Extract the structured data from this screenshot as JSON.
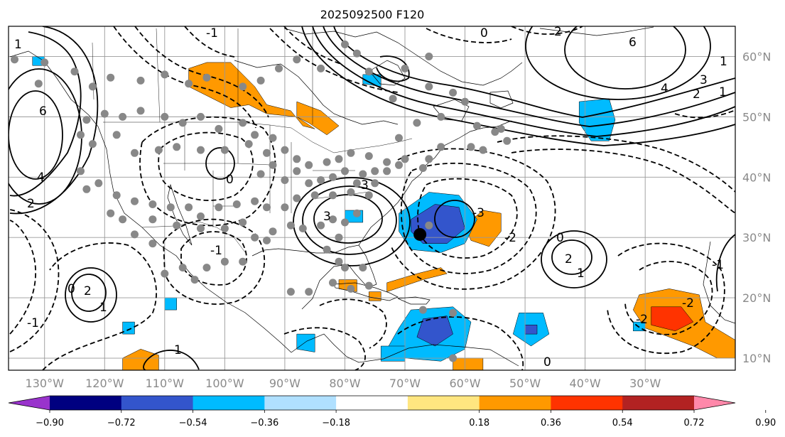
{
  "title": "2025092500 F120",
  "map": {
    "lon_range": [
      -136,
      -15
    ],
    "lat_range": [
      8,
      65
    ],
    "lat_ticks": [
      {
        "value": 60,
        "label": "60°N"
      },
      {
        "value": 50,
        "label": "50°N"
      },
      {
        "value": 40,
        "label": "40°N"
      },
      {
        "value": 30,
        "label": "30°N"
      },
      {
        "value": 20,
        "label": "20°N"
      },
      {
        "value": 10,
        "label": "10°N"
      }
    ],
    "lon_ticks": [
      {
        "value": -130,
        "label": "130°W"
      },
      {
        "value": -120,
        "label": "120°W"
      },
      {
        "value": -110,
        "label": "110°W"
      },
      {
        "value": -100,
        "label": "100°W"
      },
      {
        "value": -90,
        "label": "90°W"
      },
      {
        "value": -80,
        "label": "80°W"
      },
      {
        "value": -70,
        "label": "70°W"
      },
      {
        "value": -60,
        "label": "60°W"
      },
      {
        "value": -50,
        "label": "50°W"
      },
      {
        "value": -40,
        "label": "40°W"
      },
      {
        "value": -30,
        "label": "30°W"
      }
    ],
    "grid": true
  },
  "colorbar": {
    "extend": "both",
    "under_color": "#9933cc",
    "over_color": "#ff88aa",
    "colors": [
      "#000080",
      "#3355cc",
      "#00bbff",
      "#b0e0ff",
      "#ffffff",
      "#ffe680",
      "#ff9900",
      "#ff3300",
      "#b22222"
    ],
    "ticks": [
      {
        "value": -0.9,
        "label": "−0.90"
      },
      {
        "value": -0.72,
        "label": "−0.72"
      },
      {
        "value": -0.54,
        "label": "−0.54"
      },
      {
        "value": -0.36,
        "label": "−0.36"
      },
      {
        "value": -0.18,
        "label": "−0.18"
      },
      {
        "value": 0.18,
        "label": "0.18"
      },
      {
        "value": 0.36,
        "label": "0.36"
      },
      {
        "value": 0.54,
        "label": "0.54"
      },
      {
        "value": 0.72,
        "label": "0.72"
      },
      {
        "value": 0.9,
        "label": "0.90"
      }
    ]
  },
  "contour_labels": [
    "6",
    "4",
    "2",
    "1",
    "3",
    "0",
    "-1",
    "-2",
    "-3",
    "6",
    "4",
    "3",
    "2",
    "1",
    "0",
    "2",
    "1",
    "-1",
    "0",
    "1",
    "2",
    "-2",
    "-1",
    "-2",
    "1",
    "0",
    "2",
    "1",
    "0",
    "-1",
    "3"
  ],
  "highlighted_point": {
    "lon": -67.5,
    "lat": 30.5,
    "color": "#000000"
  },
  "station_color": "#888888",
  "stations": [
    [
      -135,
      59.5
    ],
    [
      -130,
      59
    ],
    [
      -125,
      57.5
    ],
    [
      -131,
      55.5
    ],
    [
      -122,
      55
    ],
    [
      -119,
      56.5
    ],
    [
      -114,
      56
    ],
    [
      -110,
      57
    ],
    [
      -106,
      55.5
    ],
    [
      -103,
      56.5
    ],
    [
      -97,
      55
    ],
    [
      -94,
      56
    ],
    [
      -91,
      58
    ],
    [
      -88,
      59.5
    ],
    [
      -84,
      58
    ],
    [
      -80,
      62
    ],
    [
      -78,
      60.5
    ],
    [
      -76,
      57.5
    ],
    [
      -70,
      58
    ],
    [
      -66,
      60
    ],
    [
      -72,
      53
    ],
    [
      -66,
      55
    ],
    [
      -62,
      54
    ],
    [
      -60,
      52.5
    ],
    [
      -64,
      50
    ],
    [
      -68,
      49
    ],
    [
      -58,
      48.5
    ],
    [
      -55,
      47.5
    ],
    [
      -53,
      46
    ],
    [
      -57,
      44.5
    ],
    [
      -64,
      45
    ],
    [
      -66,
      43
    ],
    [
      -70,
      43
    ],
    [
      -73,
      42.5
    ],
    [
      -75,
      41
    ],
    [
      -76,
      43.5
    ],
    [
      -79,
      44
    ],
    [
      -81,
      43
    ],
    [
      -83,
      42.5
    ],
    [
      -86,
      42
    ],
    [
      -88,
      43
    ],
    [
      -90,
      44.5
    ],
    [
      -92,
      46.5
    ],
    [
      -95,
      47
    ],
    [
      -97,
      49
    ],
    [
      -101,
      48
    ],
    [
      -104,
      50
    ],
    [
      -107,
      49
    ],
    [
      -110,
      50
    ],
    [
      -114,
      51
    ],
    [
      -117,
      50
    ],
    [
      -120,
      50.5
    ],
    [
      -123,
      49.5
    ],
    [
      -124,
      47
    ],
    [
      -122,
      45.5
    ],
    [
      -118,
      47
    ],
    [
      -115,
      44
    ],
    [
      -111,
      44.5
    ],
    [
      -108,
      45
    ],
    [
      -104,
      44.5
    ],
    [
      -100,
      44.5
    ],
    [
      -96,
      45.5
    ],
    [
      -93,
      44
    ],
    [
      -92,
      42
    ],
    [
      -94,
      40.5
    ],
    [
      -90,
      39.5
    ],
    [
      -88,
      41
    ],
    [
      -86,
      39
    ],
    [
      -84,
      39.5
    ],
    [
      -82,
      40
    ],
    [
      -80,
      41
    ],
    [
      -78,
      39
    ],
    [
      -77,
      40.5
    ],
    [
      -75,
      39
    ],
    [
      -73,
      41
    ],
    [
      -71,
      42
    ],
    [
      -76,
      37
    ],
    [
      -79,
      37.5
    ],
    [
      -82,
      37
    ],
    [
      -85,
      37
    ],
    [
      -88,
      36.5
    ],
    [
      -90,
      35
    ],
    [
      -93,
      35
    ],
    [
      -95,
      36
    ],
    [
      -98,
      35.5
    ],
    [
      -101,
      35
    ],
    [
      -104,
      33.5
    ],
    [
      -106,
      35
    ],
    [
      -109,
      35
    ],
    [
      -112,
      35.5
    ],
    [
      -115,
      36
    ],
    [
      -118,
      37
    ],
    [
      -121,
      39
    ],
    [
      -124,
      41
    ],
    [
      -123,
      38
    ],
    [
      -119,
      34
    ],
    [
      -117,
      33
    ],
    [
      -112,
      33
    ],
    [
      -108,
      32
    ],
    [
      -104,
      31.5
    ],
    [
      -100,
      31.5
    ],
    [
      -97,
      32.5
    ],
    [
      -95,
      30
    ],
    [
      -92,
      31
    ],
    [
      -89,
      32
    ],
    [
      -87,
      31.5
    ],
    [
      -84,
      32
    ],
    [
      -82,
      33
    ],
    [
      -80,
      32.5
    ],
    [
      -78,
      34
    ],
    [
      -81,
      30
    ],
    [
      -83,
      28
    ],
    [
      -81,
      26
    ],
    [
      -80,
      25
    ],
    [
      -77,
      25
    ],
    [
      -76,
      22
    ],
    [
      -79,
      21.5
    ],
    [
      -82,
      22.5
    ],
    [
      -86,
      21
    ],
    [
      -89,
      21
    ],
    [
      -93,
      29.5
    ],
    [
      -97,
      26
    ],
    [
      -100,
      26
    ],
    [
      -103,
      25
    ],
    [
      -105,
      23
    ],
    [
      -107,
      25
    ],
    [
      -110,
      24
    ],
    [
      -112,
      29
    ],
    [
      -115,
      30.5
    ],
    [
      -67,
      18
    ],
    [
      -62,
      17.5
    ],
    [
      -66,
      32
    ],
    [
      -62,
      10
    ],
    [
      -54,
      48
    ],
    [
      -59,
      45
    ],
    [
      -71,
      46.5
    ],
    [
      -67,
      41.5
    ]
  ],
  "shaded_regions": [
    {
      "color": "#ff9900",
      "points": [
        [
          -106,
          58
        ],
        [
          -103,
          59
        ],
        [
          -99,
          59
        ],
        [
          -97,
          57
        ],
        [
          -95,
          55
        ],
        [
          -93,
          52
        ],
        [
          -89,
          51
        ],
        [
          -87,
          48.5
        ],
        [
          -85,
          48
        ],
        [
          -88,
          50
        ],
        [
          -93,
          50.5
        ],
        [
          -96,
          52
        ],
        [
          -99,
          51.5
        ],
        [
          -103,
          53.5
        ],
        [
          -106,
          55
        ]
      ]
    },
    {
      "color": "#ff9900",
      "points": [
        [
          -88,
          52.5
        ],
        [
          -84,
          51
        ],
        [
          -81,
          48.5
        ],
        [
          -83,
          47
        ],
        [
          -86,
          49
        ],
        [
          -88,
          50
        ]
      ]
    },
    {
      "color": "#ff9900",
      "points": [
        [
          -31,
          20.5
        ],
        [
          -26,
          21.5
        ],
        [
          -21,
          20.5
        ],
        [
          -20,
          16
        ],
        [
          -15,
          13
        ],
        [
          -15,
          10
        ],
        [
          -18,
          10
        ],
        [
          -22,
          12
        ],
        [
          -26,
          13.5
        ],
        [
          -30,
          15
        ],
        [
          -32,
          18
        ]
      ]
    },
    {
      "color": "#ff3300",
      "points": [
        [
          -29,
          18.5
        ],
        [
          -24,
          18.5
        ],
        [
          -22,
          16
        ],
        [
          -25,
          14.5
        ],
        [
          -29,
          15.5
        ]
      ]
    },
    {
      "color": "#ff9900",
      "points": [
        [
          -57,
          34.5
        ],
        [
          -54,
          34
        ],
        [
          -54,
          31
        ],
        [
          -56,
          28.5
        ],
        [
          -59,
          29.5
        ],
        [
          -60,
          32
        ]
      ]
    },
    {
      "color": "#ff9900",
      "points": [
        [
          -73,
          21
        ],
        [
          -67,
          23
        ],
        [
          -63,
          24
        ],
        [
          -64,
          25
        ],
        [
          -68,
          24
        ],
        [
          -73,
          22.5
        ]
      ]
    },
    {
      "color": "#ff9900",
      "points": [
        [
          -76,
          21
        ],
        [
          -74,
          21
        ],
        [
          -74,
          19.5
        ],
        [
          -76,
          19.5
        ]
      ]
    },
    {
      "color": "#ff9900",
      "points": [
        [
          -81,
          23
        ],
        [
          -78,
          23
        ],
        [
          -78,
          21
        ],
        [
          -81,
          21.5
        ]
      ]
    },
    {
      "color": "#ff9900",
      "points": [
        [
          -117,
          8
        ],
        [
          -111,
          8
        ],
        [
          -111,
          10.5
        ],
        [
          -114,
          11.5
        ],
        [
          -117,
          10
        ]
      ]
    },
    {
      "color": "#ff9900",
      "points": [
        [
          -62,
          10
        ],
        [
          -57,
          10
        ],
        [
          -57,
          8
        ],
        [
          -62,
          8
        ]
      ]
    },
    {
      "color": "#00bbff",
      "points": [
        [
          -71,
          34
        ],
        [
          -66,
          37.5
        ],
        [
          -61,
          37
        ],
        [
          -58,
          33
        ],
        [
          -60,
          29
        ],
        [
          -64,
          27.5
        ],
        [
          -69,
          28
        ],
        [
          -71,
          31
        ]
      ]
    },
    {
      "color": "#3355cc",
      "points": [
        [
          -69,
          33
        ],
        [
          -65,
          35.5
        ],
        [
          -61,
          35
        ],
        [
          -60,
          31.5
        ],
        [
          -63,
          29
        ],
        [
          -67,
          29
        ],
        [
          -69,
          31
        ]
      ]
    },
    {
      "color": "#00bbff",
      "points": [
        [
          -69,
          18
        ],
        [
          -62,
          18.5
        ],
        [
          -59,
          16
        ],
        [
          -60,
          11.5
        ],
        [
          -64,
          9.5
        ],
        [
          -70,
          10
        ],
        [
          -73,
          11.5
        ],
        [
          -71,
          15
        ]
      ]
    },
    {
      "color": "#3355cc",
      "points": [
        [
          -67,
          16.5
        ],
        [
          -63,
          17
        ],
        [
          -62,
          14
        ],
        [
          -65,
          12
        ],
        [
          -68,
          13.5
        ]
      ]
    },
    {
      "color": "#00bbff",
      "points": [
        [
          -41,
          52.5
        ],
        [
          -36,
          53
        ],
        [
          -35,
          49.5
        ],
        [
          -36,
          46
        ],
        [
          -39,
          46
        ],
        [
          -41,
          49
        ]
      ]
    },
    {
      "color": "#00bbff",
      "points": [
        [
          -51,
          17.5
        ],
        [
          -47,
          17.5
        ],
        [
          -46,
          14
        ],
        [
          -49,
          12
        ],
        [
          -52,
          14
        ]
      ]
    },
    {
      "color": "#3355cc",
      "points": [
        [
          -50,
          15.5
        ],
        [
          -48,
          15.5
        ],
        [
          -48,
          14
        ],
        [
          -50,
          14
        ]
      ]
    },
    {
      "color": "#00bbff",
      "points": [
        [
          -80,
          34.5
        ],
        [
          -77,
          34.5
        ],
        [
          -77,
          32.5
        ],
        [
          -80,
          32.5
        ]
      ]
    },
    {
      "color": "#00bbff",
      "points": [
        [
          -77,
          57
        ],
        [
          -74,
          57
        ],
        [
          -74,
          55
        ],
        [
          -77,
          55.5
        ]
      ]
    },
    {
      "color": "#00bbff",
      "points": [
        [
          -132,
          60
        ],
        [
          -130,
          60
        ],
        [
          -130,
          58.5
        ],
        [
          -132,
          58.5
        ]
      ]
    },
    {
      "color": "#00bbff",
      "points": [
        [
          -74,
          12
        ],
        [
          -70,
          12
        ],
        [
          -70,
          9.5
        ],
        [
          -74,
          9.5
        ]
      ]
    },
    {
      "color": "#00bbff",
      "points": [
        [
          -117,
          16
        ],
        [
          -115,
          16
        ],
        [
          -115,
          14
        ],
        [
          -117,
          14
        ]
      ]
    },
    {
      "color": "#00bbff",
      "points": [
        [
          -88,
          14
        ],
        [
          -85,
          14
        ],
        [
          -85,
          11
        ],
        [
          -88,
          11.5
        ]
      ]
    },
    {
      "color": "#00bbff",
      "points": [
        [
          -110,
          20
        ],
        [
          -108,
          20
        ],
        [
          -108,
          18
        ],
        [
          -110,
          18
        ]
      ]
    },
    {
      "color": "#00bbff",
      "points": [
        [
          -32,
          16
        ],
        [
          -30,
          16
        ],
        [
          -30,
          14.5
        ],
        [
          -32,
          14.5
        ]
      ]
    }
  ]
}
